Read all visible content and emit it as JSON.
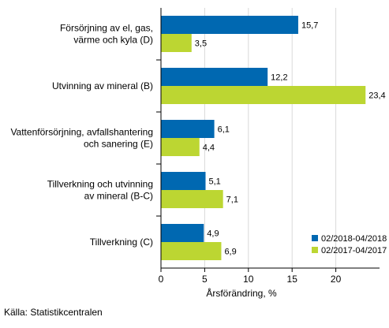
{
  "chart_data": {
    "type": "bar",
    "orientation": "horizontal",
    "categories": [
      [
        "Försörjning av el, gas,",
        "värme och kyla (D)"
      ],
      [
        "Utvinning av mineral (B)"
      ],
      [
        "Vattenförsörjning, avfallshantering",
        "och sanering (E)"
      ],
      [
        "Tillverkning och utvinning",
        "av mineral (B-C)"
      ],
      [
        "Tillverkning (C)"
      ]
    ],
    "series": [
      {
        "name": "02/2018-04/2018",
        "color": "#0068b1",
        "values": [
          15.7,
          12.2,
          6.1,
          5.1,
          4.9
        ],
        "labels": [
          "15,7",
          "12,2",
          "6,1",
          "5,1",
          "4,9"
        ]
      },
      {
        "name": "02/2017-04/2017",
        "color": "#bcd632",
        "values": [
          3.5,
          23.4,
          4.4,
          7.1,
          6.9
        ],
        "labels": [
          "3,5",
          "23,4",
          "4,4",
          "7,1",
          "6,9"
        ]
      }
    ],
    "xlim": [
      0,
      25
    ],
    "xticks": [
      0,
      5,
      10,
      15,
      20
    ],
    "xlabel": "Årsförändring, %",
    "grid": true,
    "legend_position": "bottom-right"
  },
  "source": "Källa: Statistikcentralen"
}
